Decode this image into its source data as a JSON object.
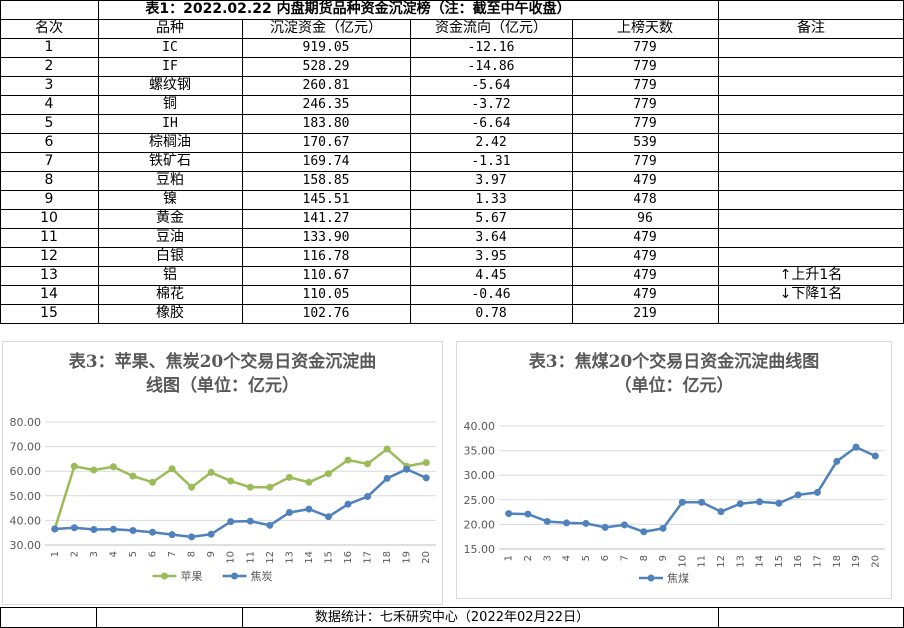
{
  "table": {
    "title": "表1：2022.02.22 内盘期货品种资金沉淀榜（注：截至中午收盘）",
    "headers": [
      "名次",
      "品种",
      "沉淀资金（亿元）",
      "资金流向（亿元）",
      "上榜天数",
      "备注"
    ],
    "rows": [
      {
        "rank": "1",
        "name": "IC",
        "funds": "919.05",
        "flow": "-12.16",
        "days": "779",
        "note": ""
      },
      {
        "rank": "2",
        "name": "IF",
        "funds": "528.29",
        "flow": "-14.86",
        "days": "779",
        "note": ""
      },
      {
        "rank": "3",
        "name": "螺纹钢",
        "funds": "260.81",
        "flow": "-5.64",
        "days": "779",
        "note": ""
      },
      {
        "rank": "4",
        "name": "铜",
        "funds": "246.35",
        "flow": "-3.72",
        "days": "779",
        "note": ""
      },
      {
        "rank": "5",
        "name": "IH",
        "funds": "183.80",
        "flow": "-6.64",
        "days": "779",
        "note": ""
      },
      {
        "rank": "6",
        "name": "棕榈油",
        "funds": "170.67",
        "flow": "2.42",
        "days": "539",
        "note": ""
      },
      {
        "rank": "7",
        "name": "铁矿石",
        "funds": "169.74",
        "flow": "-1.31",
        "days": "779",
        "note": ""
      },
      {
        "rank": "8",
        "name": "豆粕",
        "funds": "158.85",
        "flow": "3.97",
        "days": "479",
        "note": ""
      },
      {
        "rank": "9",
        "name": "镍",
        "funds": "145.51",
        "flow": "1.33",
        "days": "478",
        "note": ""
      },
      {
        "rank": "10",
        "name": "黄金",
        "funds": "141.27",
        "flow": "5.67",
        "days": "96",
        "note": ""
      },
      {
        "rank": "11",
        "name": "豆油",
        "funds": "133.90",
        "flow": "3.64",
        "days": "479",
        "note": ""
      },
      {
        "rank": "12",
        "name": "白银",
        "funds": "116.78",
        "flow": "3.95",
        "days": "479",
        "note": ""
      },
      {
        "rank": "13",
        "name": "铝",
        "funds": "110.67",
        "flow": "4.45",
        "days": "479",
        "note": "↑上升1名"
      },
      {
        "rank": "14",
        "name": "棉花",
        "funds": "110.05",
        "flow": "-0.46",
        "days": "479",
        "note": "↓下降1名"
      },
      {
        "rank": "15",
        "name": "橡胶",
        "funds": "102.76",
        "flow": "0.78",
        "days": "219",
        "note": ""
      }
    ]
  },
  "footer": "数据统计：七禾研究中心（2022年02月22日）",
  "colors": {
    "apple": "#9bbb59",
    "coke": "#4f81bd",
    "grid": "#d9d9d9",
    "axis_text": "#595959"
  },
  "chart_data": [
    {
      "type": "line",
      "title_line1": "表3：苹果、焦炭20个交易日资金沉淀曲",
      "title_line2": "线图（单位：亿元）",
      "x": [
        1,
        2,
        3,
        4,
        5,
        6,
        7,
        8,
        9,
        10,
        11,
        12,
        13,
        14,
        15,
        16,
        17,
        18,
        19,
        20
      ],
      "ylim": [
        30,
        80
      ],
      "yticks": [
        "30.00",
        "40.00",
        "50.00",
        "60.00",
        "70.00",
        "80.00"
      ],
      "grid": true,
      "legend": "bottom",
      "series": [
        {
          "name": "苹果",
          "color": "#9bbb59",
          "values": [
            36.5,
            62,
            60.5,
            61.8,
            58,
            55.5,
            61,
            53.5,
            59.5,
            56,
            53.5,
            53.5,
            57.5,
            55.5,
            59,
            64.5,
            63,
            69,
            62,
            63.5
          ]
        },
        {
          "name": "焦炭",
          "color": "#4f81bd",
          "values": [
            36.5,
            37,
            36.3,
            36.4,
            35.9,
            35.2,
            34.2,
            33.3,
            34.4,
            39.5,
            39.7,
            38,
            43.2,
            44.6,
            41.5,
            46.6,
            49.7,
            57.1,
            60.8,
            57.3
          ]
        }
      ]
    },
    {
      "type": "line",
      "title_line1": "表3：焦煤20个交易日资金沉淀曲线图",
      "title_line2": "（单位：亿元）",
      "x": [
        1,
        2,
        3,
        4,
        5,
        6,
        7,
        8,
        9,
        10,
        11,
        12,
        13,
        14,
        15,
        16,
        17,
        18,
        19,
        20
      ],
      "ylim": [
        15,
        40
      ],
      "yticks": [
        "15.00",
        "20.00",
        "25.00",
        "30.00",
        "35.00",
        "40.00"
      ],
      "grid": true,
      "legend": "bottom",
      "series": [
        {
          "name": "焦煤",
          "color": "#4f81bd",
          "values": [
            22.2,
            22.1,
            20.6,
            20.3,
            20.2,
            19.4,
            19.9,
            18.5,
            19.2,
            24.5,
            24.5,
            22.6,
            24.2,
            24.6,
            24.3,
            26,
            26.5,
            32.8,
            35.7,
            33.9
          ]
        }
      ]
    }
  ]
}
